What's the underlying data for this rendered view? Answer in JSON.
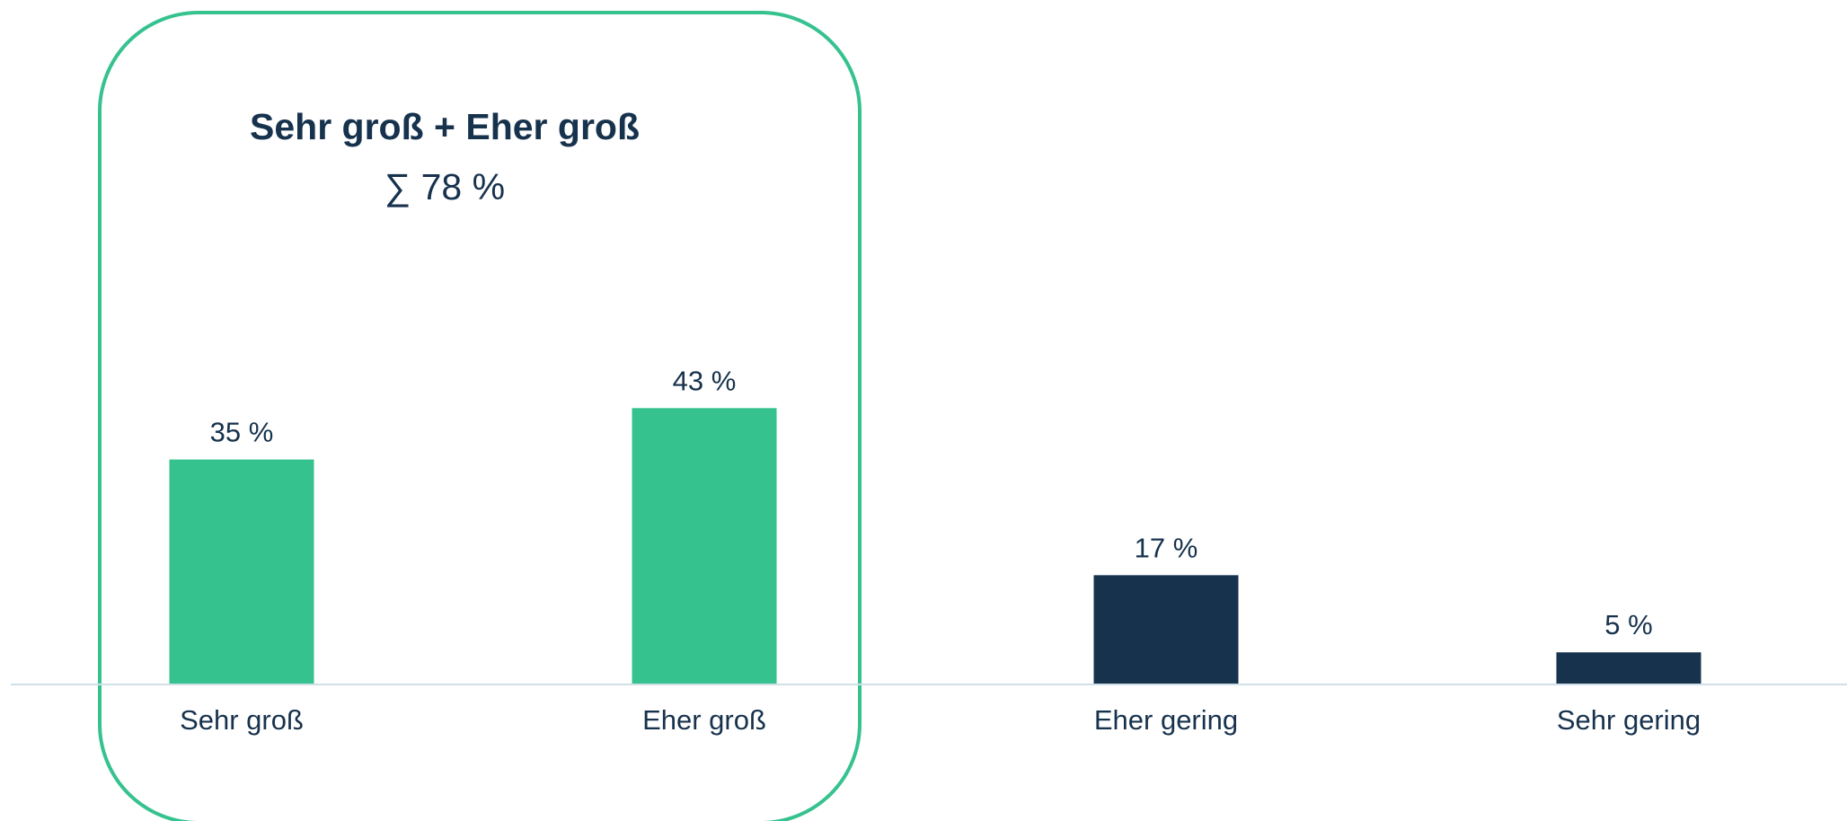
{
  "chart_data": {
    "type": "bar",
    "categories": [
      "Sehr groß",
      "Eher groß",
      "Eher gering",
      "Sehr gering"
    ],
    "values": [
      35,
      43,
      17,
      5
    ],
    "value_labels": [
      "35 %",
      "43 %",
      "17 %",
      "5 %"
    ],
    "bar_colors": [
      "#36c28f",
      "#36c28f",
      "#17324d",
      "#17324d"
    ],
    "title": "",
    "xlabel": "",
    "ylabel": "",
    "ylim": [
      0,
      100
    ],
    "grid": false,
    "legend": "none",
    "highlight": {
      "title": "Sehr groß + Eher groß",
      "sum_label": "∑ 78 %",
      "covers_categories": [
        "Sehr groß",
        "Eher groß"
      ],
      "border_color": "#36c28f"
    }
  },
  "colors": {
    "text": "#17324d",
    "axis": "#cfe0e8"
  }
}
